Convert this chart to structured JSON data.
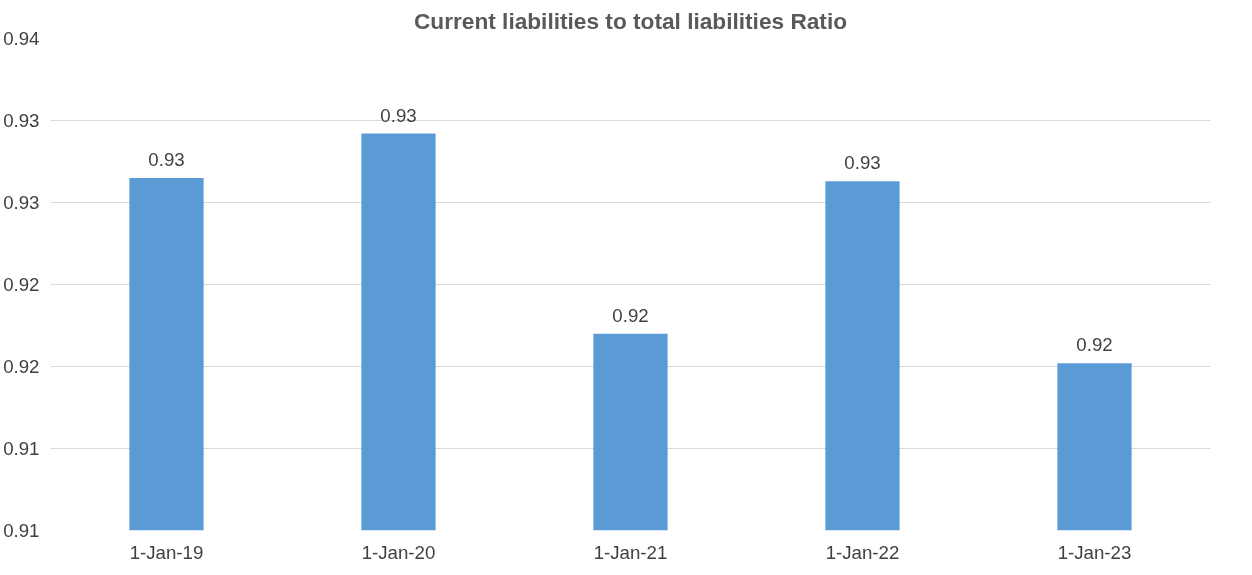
{
  "chart_data": {
    "type": "bar",
    "title": "Current liabilities to total liabilities Ratio",
    "categories": [
      "1-Jan-19",
      "1-Jan-20",
      "1-Jan-21",
      "1-Jan-22",
      "1-Jan-23"
    ],
    "values": [
      0.9265,
      0.9292,
      0.917,
      0.9263,
      0.9152
    ],
    "value_labels": [
      "0.93",
      "0.93",
      "0.92",
      "0.93",
      "0.92"
    ],
    "color": "#5b9bd5",
    "ylim": [
      0.905,
      0.935
    ],
    "yticks": [
      {
        "value": 0.905,
        "label": "0.91"
      },
      {
        "value": 0.91,
        "label": "0.91"
      },
      {
        "value": 0.915,
        "label": "0.92"
      },
      {
        "value": 0.92,
        "label": "0.92"
      },
      {
        "value": 0.925,
        "label": "0.93"
      },
      {
        "value": 0.93,
        "label": "0.93"
      },
      {
        "value": 0.935,
        "label": "0.94"
      }
    ],
    "grid": "y"
  }
}
